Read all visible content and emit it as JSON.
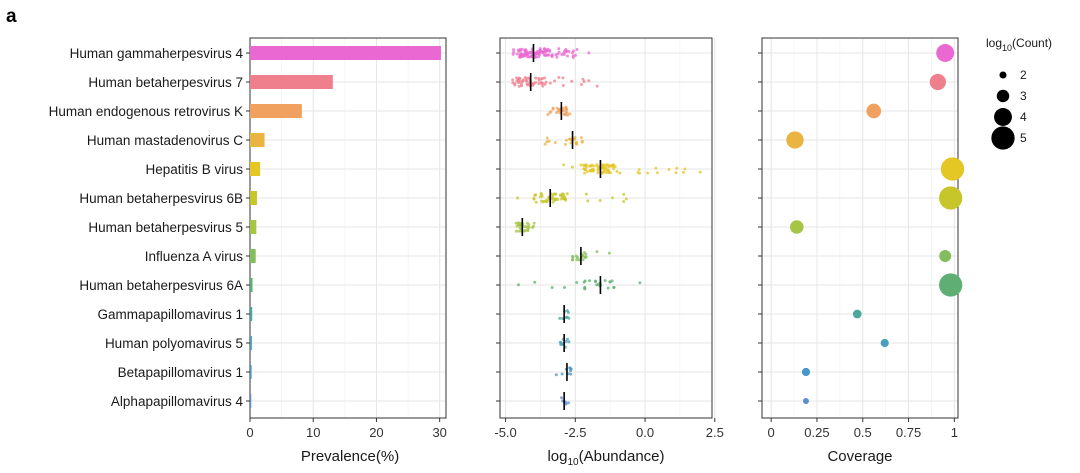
{
  "figure": {
    "panel_label": "a"
  },
  "chart_data": [
    {
      "type": "bar",
      "orientation": "horizontal",
      "xlabel": "Prevalence(%)",
      "xlim": [
        0,
        31
      ],
      "xticks": [
        0,
        10,
        20,
        30
      ],
      "grid": true,
      "categories": [
        "Human gammaherpesvirus 4",
        "Human betaherpesvirus 7",
        "Human endogenous retrovirus K",
        "Human mastadenovirus C",
        "Hepatitis B virus",
        "Human betaherpesvirus 6B",
        "Human betaherpesvirus 5",
        "Influenza A virus",
        "Human betaherpesvirus 6A",
        "Gammapapillomavirus 1",
        "Human polyomavirus 5",
        "Betapapillomavirus 1",
        "Alphapapillomavirus 4"
      ],
      "values": [
        30.2,
        13.1,
        8.2,
        2.3,
        1.6,
        1.1,
        1.0,
        0.9,
        0.4,
        0.35,
        0.3,
        0.25,
        0.2
      ],
      "colors": [
        "#e968d1",
        "#ef7f8c",
        "#f0a15f",
        "#e9b441",
        "#e4c624",
        "#c6c62a",
        "#a5c545",
        "#83bd5d",
        "#5faf74",
        "#4aa79c",
        "#4aa0bc",
        "#4596c9",
        "#5b8fd0"
      ]
    },
    {
      "type": "scatter",
      "xlabel": "log10(Abundance)",
      "xlabel_base": "log",
      "xlabel_sub": "10",
      "xlabel_rest": "(Abundance)",
      "xlim": [
        -5.2,
        2.4
      ],
      "xticks": [
        -5.0,
        -2.5,
        0.0,
        2.5
      ],
      "xtick_labels": [
        "-5.0",
        "-2.5",
        "0.0",
        "2.5"
      ],
      "grid": true,
      "medians": [
        -4.0,
        -4.1,
        -3.0,
        -2.6,
        -1.6,
        -3.4,
        -4.4,
        -2.3,
        -1.6,
        -2.9,
        -2.9,
        -2.8,
        -2.9
      ],
      "point_ranges": [
        [
          -4.8,
          -2.0
        ],
        [
          -4.8,
          -1.6
        ],
        [
          -3.5,
          -2.6
        ],
        [
          -3.6,
          -2.1
        ],
        [
          -3.0,
          2.2
        ],
        [
          -4.8,
          -0.5
        ],
        [
          -4.9,
          -3.9
        ],
        [
          -2.6,
          -1.2
        ],
        [
          -4.7,
          -0.1
        ],
        [
          -3.1,
          -2.6
        ],
        [
          -3.2,
          -2.5
        ],
        [
          -3.3,
          -2.6
        ],
        [
          -3.1,
          -2.7
        ]
      ],
      "point_counts": [
        110,
        60,
        28,
        22,
        80,
        55,
        30,
        20,
        26,
        8,
        10,
        9,
        6
      ]
    },
    {
      "type": "scatter",
      "xlabel": "Coverage",
      "xlim": [
        -0.05,
        1.02
      ],
      "xticks": [
        0,
        0.25,
        0.5,
        0.75,
        1
      ],
      "xtick_labels": [
        "0",
        "0.25",
        "0.5",
        "0.75",
        "1"
      ],
      "grid": true,
      "coverage": [
        0.95,
        0.91,
        0.56,
        0.13,
        0.99,
        0.98,
        0.14,
        0.95,
        0.98,
        0.47,
        0.62,
        0.19,
        0.19
      ],
      "log10_count": [
        4.0,
        3.7,
        3.4,
        3.9,
        5.0,
        5.0,
        3.2,
        2.9,
        5.0,
        2.3,
        2.2,
        2.2,
        1.8
      ],
      "legend": {
        "title_base": "log",
        "title_sub": "10",
        "title_rest": "(Count)",
        "entries": [
          2,
          3,
          4,
          5
        ],
        "position": "right"
      }
    }
  ]
}
